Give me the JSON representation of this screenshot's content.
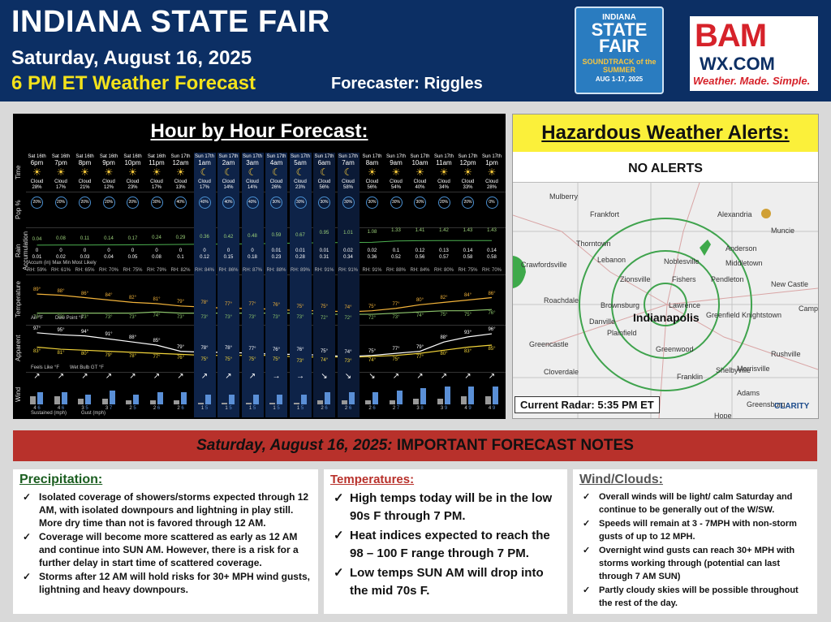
{
  "header": {
    "title": "INDIANA STATE FAIR",
    "date": "Saturday, August 16, 2025",
    "subtitle": "6 PM ET Weather Forecast",
    "forecaster": "Forecaster: Riggles",
    "fair_logo": {
      "line1": "INDIANA",
      "line2": "STATE FAIR",
      "line3": "SOUNDTRACK of the SUMMER",
      "line4": "AUG 1-17, 2025"
    },
    "bam_logo": {
      "name": "BAM",
      "domain": "WX.COM",
      "tagline": "Weather. Made. Simple."
    }
  },
  "hourly": {
    "title": "Hour by Hour Forecast:",
    "row_labels": [
      "Time",
      "Pop %",
      "Rain Accumulation",
      "Temperature",
      "Apparent",
      "Wind"
    ],
    "accum_legend": "Accum (in)  Max  Min  Most Likely",
    "temp_legend": {
      "air": "Air °F",
      "dew": "Dew Point °F"
    },
    "app_legend": {
      "fl": "Feels Like °F",
      "wb": "Wet Bulb GT °F"
    },
    "wind_legend": {
      "sust": "Sustained (mph)",
      "gust": "Gust (mph)"
    },
    "hours": [
      {
        "day": "Sat 16th",
        "hr": "6pm",
        "cloud": "Cloud 28%",
        "pop": "20%",
        "rmax": "0.04",
        "rmin": "0",
        "rml": "0.01",
        "rh": "RH: 59%",
        "t": "89°",
        "d": "73°",
        "fl": "97°",
        "wb": "83°",
        "ws": "4",
        "wg": "6",
        "arr": "↗",
        "night": 0
      },
      {
        "day": "Sat 16th",
        "hr": "7pm",
        "cloud": "Cloud 17%",
        "pop": "20%",
        "rmax": "0.08",
        "rmin": "0",
        "rml": "0.02",
        "rh": "RH: 61%",
        "t": "88°",
        "d": "73°",
        "fl": "95°",
        "wb": "81°",
        "ws": "4",
        "wg": "6",
        "arr": "↗",
        "night": 0
      },
      {
        "day": "Sat 16th",
        "hr": "8pm",
        "cloud": "Cloud 21%",
        "pop": "20%",
        "rmax": "0.11",
        "rmin": "0",
        "rml": "0.03",
        "rh": "RH: 65%",
        "t": "86°",
        "d": "73°",
        "fl": "94°",
        "wb": "80°",
        "ws": "3",
        "wg": "5",
        "arr": "↗",
        "night": 0
      },
      {
        "day": "Sat 16th",
        "hr": "9pm",
        "cloud": "Cloud 12%",
        "pop": "20%",
        "rmax": "0.14",
        "rmin": "0",
        "rml": "0.04",
        "rh": "RH: 70%",
        "t": "84°",
        "d": "73°",
        "fl": "91°",
        "wb": "79°",
        "ws": "3",
        "wg": "7",
        "arr": "↗",
        "night": 0
      },
      {
        "day": "Sat 16th",
        "hr": "10pm",
        "cloud": "Cloud 23%",
        "pop": "20%",
        "rmax": "0.17",
        "rmin": "0",
        "rml": "0.05",
        "rh": "RH: 75%",
        "t": "82°",
        "d": "73°",
        "fl": "88°",
        "wb": "78°",
        "ws": "2",
        "wg": "5",
        "arr": "↗",
        "night": 0
      },
      {
        "day": "Sat 16th",
        "hr": "11pm",
        "cloud": "Cloud 17%",
        "pop": "30%",
        "rmax": "0.24",
        "rmin": "0",
        "rml": "0.08",
        "rh": "RH: 79%",
        "t": "81°",
        "d": "74°",
        "fl": "85°",
        "wb": "77°",
        "ws": "2",
        "wg": "6",
        "arr": "↗",
        "night": 0
      },
      {
        "day": "Sun 17th",
        "hr": "12am",
        "cloud": "Cloud 13%",
        "pop": "40%",
        "rmax": "0.29",
        "rmin": "0",
        "rml": "0.1",
        "rh": "RH: 82%",
        "t": "79°",
        "d": "73°",
        "fl": "79°",
        "wb": "76°",
        "ws": "2",
        "wg": "6",
        "arr": "↗",
        "night": 0
      },
      {
        "day": "Sun 17th",
        "hr": "1am",
        "cloud": "Cloud 17%",
        "pop": "40%",
        "rmax": "0.36",
        "rmin": "0",
        "rml": "0.12",
        "rh": "RH: 84%",
        "t": "78°",
        "d": "73°",
        "fl": "78°",
        "wb": "75°",
        "ws": "1",
        "wg": "5",
        "arr": "↗",
        "night": 1
      },
      {
        "day": "Sun 17th",
        "hr": "2am",
        "cloud": "Cloud 14%",
        "pop": "40%",
        "rmax": "0.42",
        "rmin": "0",
        "rml": "0.15",
        "rh": "RH: 86%",
        "t": "77°",
        "d": "73°",
        "fl": "78°",
        "wb": "75°",
        "ws": "1",
        "wg": "5",
        "arr": "↗",
        "night": 1
      },
      {
        "day": "Sun 17th",
        "hr": "3am",
        "cloud": "Cloud 14%",
        "pop": "40%",
        "rmax": "0.48",
        "rmin": "0",
        "rml": "0.18",
        "rh": "RH: 87%",
        "t": "77°",
        "d": "73°",
        "fl": "77°",
        "wb": "75°",
        "ws": "1",
        "wg": "5",
        "arr": "↗",
        "night": 1
      },
      {
        "day": "Sun 17th",
        "hr": "4am",
        "cloud": "Cloud 26%",
        "pop": "30%",
        "rmax": "0.59",
        "rmin": "0.01",
        "rml": "0.23",
        "rh": "RH: 88%",
        "t": "76°",
        "d": "73°",
        "fl": "76°",
        "wb": "75°",
        "ws": "1",
        "wg": "5",
        "arr": "→",
        "night": 1
      },
      {
        "day": "Sun 17th",
        "hr": "5am",
        "cloud": "Cloud 23%",
        "pop": "30%",
        "rmax": "0.67",
        "rmin": "0.01",
        "rml": "0.28",
        "rh": "RH: 89%",
        "t": "75°",
        "d": "73°",
        "fl": "76°",
        "wb": "73°",
        "ws": "1",
        "wg": "5",
        "arr": "→",
        "night": 1
      },
      {
        "day": "Sun 17th",
        "hr": "6am",
        "cloud": "Cloud 56%",
        "pop": "30%",
        "rmax": "0.95",
        "rmin": "0.01",
        "rml": "0.31",
        "rh": "RH: 91%",
        "t": "75°",
        "d": "72°",
        "fl": "75°",
        "wb": "74°",
        "ws": "2",
        "wg": "6",
        "arr": "↘",
        "night": 2
      },
      {
        "day": "Sun 17th",
        "hr": "7am",
        "cloud": "Cloud 58%",
        "pop": "30%",
        "rmax": "1.01",
        "rmin": "0.02",
        "rml": "0.34",
        "rh": "RH: 91%",
        "t": "74°",
        "d": "72°",
        "fl": "74°",
        "wb": "73°",
        "ws": "2",
        "wg": "6",
        "arr": "↘",
        "night": 2
      },
      {
        "day": "Sun 17th",
        "hr": "8am",
        "cloud": "Cloud 56%",
        "pop": "30%",
        "rmax": "1.08",
        "rmin": "0.02",
        "rml": "0.36",
        "rh": "RH: 91%",
        "t": "75°",
        "d": "72°",
        "fl": "75°",
        "wb": "74°",
        "ws": "2",
        "wg": "6",
        "arr": "↘",
        "night": 0
      },
      {
        "day": "Sun 17th",
        "hr": "9am",
        "cloud": "Cloud 54%",
        "pop": "30%",
        "rmax": "1.33",
        "rmin": "0.1",
        "rml": "0.52",
        "rh": "RH: 88%",
        "t": "77°",
        "d": "73°",
        "fl": "77°",
        "wb": "75°",
        "ws": "2",
        "wg": "7",
        "arr": "↗",
        "night": 0
      },
      {
        "day": "Sun 17th",
        "hr": "10am",
        "cloud": "Cloud 40%",
        "pop": "30%",
        "rmax": "1.41",
        "rmin": "0.12",
        "rml": "0.56",
        "rh": "RH: 84%",
        "t": "80°",
        "d": "74°",
        "fl": "79°",
        "wb": "77°",
        "ws": "3",
        "wg": "8",
        "arr": "↗",
        "night": 0
      },
      {
        "day": "Sun 17th",
        "hr": "11am",
        "cloud": "Cloud 34%",
        "pop": "20%",
        "rmax": "1.42",
        "rmin": "0.13",
        "rml": "0.57",
        "rh": "RH: 80%",
        "t": "82°",
        "d": "75°",
        "fl": "88°",
        "wb": "80°",
        "ws": "3",
        "wg": "9",
        "arr": "↗",
        "night": 0
      },
      {
        "day": "Sun 17th",
        "hr": "12pm",
        "cloud": "Cloud 33%",
        "pop": "20%",
        "rmax": "1.43",
        "rmin": "0.14",
        "rml": "0.58",
        "rh": "RH: 75%",
        "t": "84°",
        "d": "75°",
        "fl": "93°",
        "wb": "83°",
        "ws": "4",
        "wg": "9",
        "arr": "↗",
        "night": 0
      },
      {
        "day": "Sun 17th",
        "hr": "1pm",
        "cloud": "Cloud 28%",
        "pop": "0%",
        "rmax": "1.43",
        "rmin": "0.14",
        "rml": "0.58",
        "rh": "RH: 70%",
        "t": "86°",
        "d": "76°",
        "fl": "96°",
        "wb": "85°",
        "ws": "4",
        "wg": "9",
        "arr": "↗",
        "night": 0
      }
    ]
  },
  "hazard": {
    "title": "Hazardous Weather Alerts:",
    "status": "NO ALERTS",
    "radar_label": "Current Radar: 5:35 PM ET",
    "places": [
      "Mulberry",
      "Frankfort",
      "Alexandria",
      "Muncie",
      "Thorntown",
      "Lebanon",
      "Noblesville",
      "Anderson",
      "Middletown",
      "Crawfordsville",
      "Pendleton",
      "Zionsville",
      "Fishers",
      "New Castle",
      "Roachdale",
      "Brownsburg",
      "Lawrence",
      "Indianapolis",
      "Greenfield",
      "Knightstown",
      "Danville",
      "Plainfield",
      "Greencastle",
      "Greenwood",
      "Rushville",
      "Cloverdale",
      "Morrisville",
      "Shelbyville",
      "Franklin",
      "Adams",
      "Greensburg",
      "Hope",
      "Camp"
    ],
    "brand": "CLARITY"
  },
  "notes": {
    "date": "Saturday, August 16, 2025:",
    "heading": " IMPORTANT FORECAST NOTES",
    "precip": {
      "title": "Precipitation:",
      "items": [
        "Isolated coverage of showers/storms expected through 12 AM, with isolated downpours and lightning in play still. More dry time than not is favored through 12 AM.",
        "Coverage will become more scattered as early as 12 AM and continue into SUN AM. However, there is a risk for a further delay in start time of scattered coverage.",
        "Storms after 12 AM will hold risks for 30+ MPH wind gusts, lightning and heavy downpours."
      ]
    },
    "temps": {
      "title": "Temperatures:",
      "items": [
        "High temps today will be in the low 90s F through 7 PM.",
        "Heat indices expected to reach the 98 – 100 F range through 7 PM.",
        "Low temps SUN AM will drop into the mid 70s F."
      ]
    },
    "wind": {
      "title": "Wind/Clouds:",
      "items": [
        "Overall winds will be light/ calm Saturday and continue to be generally out of the W/SW.",
        "Speeds will remain at 3 - 7MPH with non-storm gusts of up to 12 MPH.",
        "Overnight wind gusts can reach 30+ MPH with storms working through (potential can last through 7 AM SUN)",
        "Partly cloudy skies will be possible throughout the rest of the day."
      ]
    }
  },
  "colors": {
    "header_bg": "#0c2f64",
    "subtitle": "#f3e21b",
    "alert_yellow": "#fbf03a",
    "notes_red": "#b8312b"
  }
}
